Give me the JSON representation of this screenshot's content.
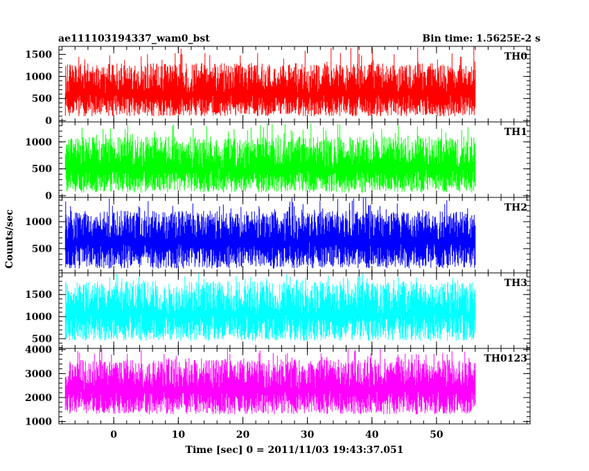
{
  "header": {
    "title": "ae111103194337_wam0_bst",
    "bin_time": "Bin time: 1.5625E-2 s"
  },
  "axes": {
    "xlabel": "Time [sec] 0 = 2011/11/03 19:43:37.051",
    "ylabel": "Counts/sec",
    "xlim": [
      -8.5,
      64.5
    ],
    "x_ticks": [
      0,
      10,
      20,
      30,
      40,
      50
    ],
    "x_tick_labels": [
      "0",
      "10",
      "20",
      "30",
      "40",
      "50"
    ]
  },
  "chart_data": {
    "type": "line",
    "x_range": [
      -7.5,
      56
    ],
    "panels": [
      {
        "name": "TH0",
        "color": "#ff0000",
        "ylim": [
          -30,
          1680
        ],
        "yticks": [
          0,
          500,
          1000,
          1500
        ],
        "ytick_labels": [
          "0",
          "500",
          "1000",
          "1500"
        ],
        "mean": 600,
        "low": 100,
        "high": 1300,
        "peak": 1700
      },
      {
        "name": "TH1",
        "color": "#00ff00",
        "ylim": [
          -30,
          1370
        ],
        "yticks": [
          0,
          500,
          1000
        ],
        "ytick_labels": [
          "0",
          "500",
          "1000"
        ],
        "mean": 500,
        "low": 60,
        "high": 1100,
        "peak": 1350
      },
      {
        "name": "TH2",
        "color": "#0000ff",
        "ylim": [
          50,
          1450
        ],
        "yticks": [
          500,
          1000
        ],
        "ytick_labels": [
          "500",
          "1000"
        ],
        "mean": 620,
        "low": 130,
        "high": 1200,
        "peak": 1450
      },
      {
        "name": "TH3",
        "color": "#00ffff",
        "ylim": [
          280,
          1990
        ],
        "yticks": [
          500,
          1000,
          1500
        ],
        "ytick_labels": [
          "500",
          "1000",
          "1500"
        ],
        "mean": 1050,
        "low": 450,
        "high": 1800,
        "peak": 1990
      },
      {
        "name": "TH0123",
        "color": "#ff00ff",
        "ylim": [
          900,
          4050
        ],
        "yticks": [
          1000,
          2000,
          3000,
          4000
        ],
        "ytick_labels": [
          "1000",
          "2000",
          "3000",
          "4000"
        ],
        "mean": 2300,
        "low": 1300,
        "high": 3600,
        "peak": 4050
      }
    ]
  }
}
